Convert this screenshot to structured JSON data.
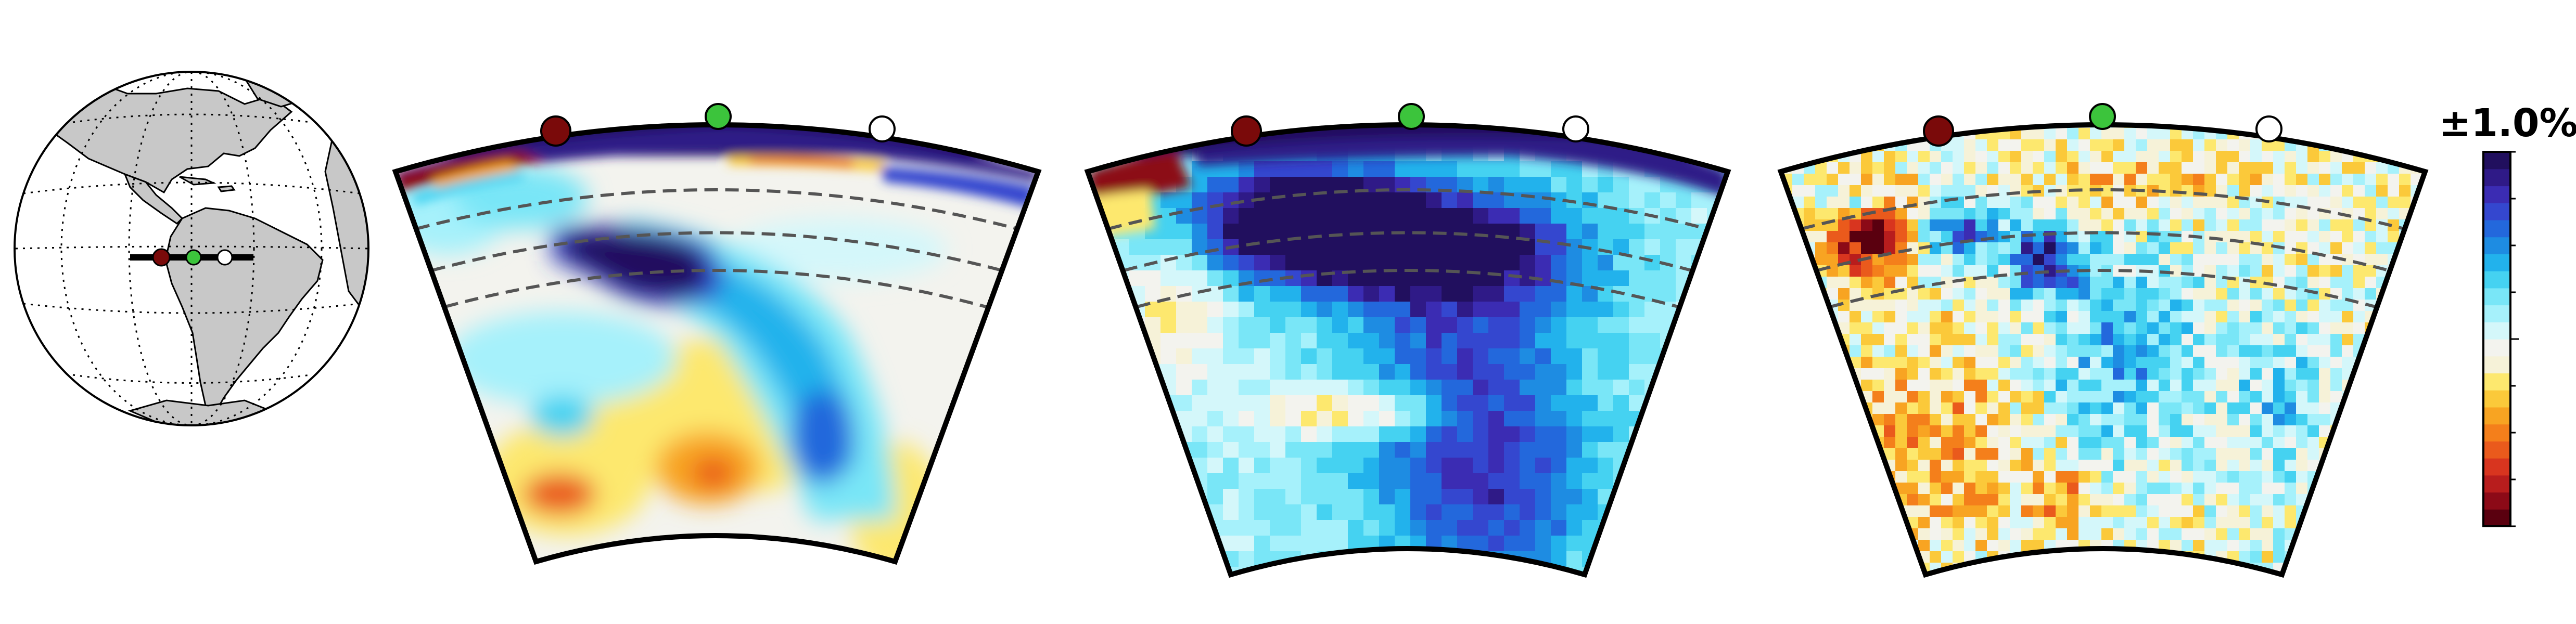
{
  "figure": {
    "colorbar": {
      "label": "±1.0%",
      "colors": [
        "#5a000f",
        "#8c0a17",
        "#b81d1d",
        "#d8351f",
        "#ea5a1c",
        "#f47f1b",
        "#f8a422",
        "#fbc93a",
        "#fde86e",
        "#f6f2d8",
        "#f3f3ee",
        "#d4f7fa",
        "#a6f1fb",
        "#79e6f7",
        "#45d2f1",
        "#22b2ec",
        "#1e8ce2",
        "#2368dc",
        "#3447cf",
        "#3b2cb3",
        "#2f1a87",
        "#210f5e"
      ]
    },
    "markers": {
      "west_color": "#7a0a0a",
      "center_color": "#3cc43c",
      "east_color": "#ffffff"
    },
    "panels": [
      {
        "name": "smooth-model-section",
        "style": "smooth"
      },
      {
        "name": "pixel-model-section",
        "style": "blocky"
      },
      {
        "name": "noisy-model-section",
        "style": "noisy"
      }
    ],
    "globe": {
      "land_color": "#c8c8c8",
      "ocean_color": "#ffffff",
      "profile_line_color": "#000000"
    }
  }
}
